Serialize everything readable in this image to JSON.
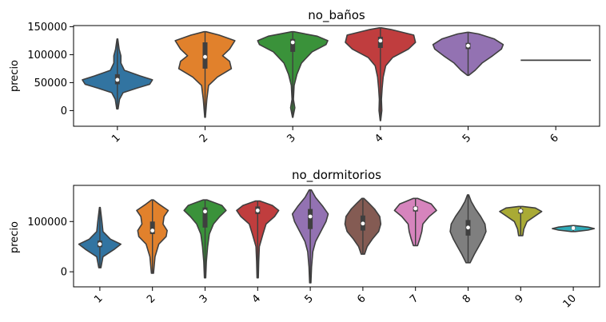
{
  "chart_data": [
    {
      "type": "violin",
      "title": "no_baños",
      "xlabel": "",
      "ylabel": "precio",
      "ylim": [
        -28000,
        152000
      ],
      "yticks": [
        0,
        50000,
        100000,
        150000
      ],
      "categories": [
        "1",
        "2",
        "3",
        "4",
        "5",
        "6"
      ],
      "colors": [
        "#3274a1",
        "#e1812c",
        "#3a923a",
        "#c03d3e",
        "#9372b2",
        "#845b53"
      ],
      "violins": [
        {
          "min": 3000,
          "max": 128000,
          "q1": 47000,
          "median": 55000,
          "q3": 65000,
          "density": [
            [
              3000,
              0.02
            ],
            [
              20000,
              0.06
            ],
            [
              32000,
              0.16
            ],
            [
              40000,
              0.55
            ],
            [
              47000,
              0.92
            ],
            [
              55000,
              1.0
            ],
            [
              62000,
              0.65
            ],
            [
              72000,
              0.2
            ],
            [
              85000,
              0.1
            ],
            [
              98000,
              0.1
            ],
            [
              110000,
              0.05
            ],
            [
              128000,
              0.01
            ]
          ]
        },
        {
          "min": -12000,
          "max": 141000,
          "q1": 75000,
          "median": 96000,
          "q3": 122000,
          "density": [
            [
              -12000,
              0.01
            ],
            [
              20000,
              0.05
            ],
            [
              45000,
              0.1
            ],
            [
              60000,
              0.35
            ],
            [
              75000,
              0.75
            ],
            [
              88000,
              0.7
            ],
            [
              98000,
              0.5
            ],
            [
              110000,
              0.7
            ],
            [
              125000,
              0.85
            ],
            [
              135000,
              0.4
            ],
            [
              141000,
              0.03
            ]
          ]
        },
        {
          "min": -12000,
          "max": 141000,
          "q1": 105000,
          "median": 122000,
          "q3": 128000,
          "density": [
            [
              -12000,
              0.005
            ],
            [
              5000,
              0.06
            ],
            [
              20000,
              0.02
            ],
            [
              45000,
              0.04
            ],
            [
              65000,
              0.12
            ],
            [
              85000,
              0.25
            ],
            [
              105000,
              0.55
            ],
            [
              118000,
              0.95
            ],
            [
              125000,
              1.0
            ],
            [
              133000,
              0.7
            ],
            [
              141000,
              0.03
            ]
          ]
        },
        {
          "min": -18000,
          "max": 148000,
          "q1": 112000,
          "median": 125000,
          "q3": 132000,
          "density": [
            [
              -18000,
              0.005
            ],
            [
              0,
              0.04
            ],
            [
              20000,
              0.03
            ],
            [
              40000,
              0.05
            ],
            [
              60000,
              0.08
            ],
            [
              80000,
              0.15
            ],
            [
              95000,
              0.35
            ],
            [
              110000,
              0.8
            ],
            [
              122000,
              1.0
            ],
            [
              135000,
              0.95
            ],
            [
              145000,
              0.3
            ],
            [
              148000,
              0.03
            ]
          ]
        },
        {
          "min": 63000,
          "max": 140000,
          "q1": 110000,
          "median": 116000,
          "q3": 121000,
          "density": [
            [
              63000,
              0.02
            ],
            [
              72000,
              0.2
            ],
            [
              85000,
              0.4
            ],
            [
              98000,
              0.7
            ],
            [
              110000,
              0.95
            ],
            [
              118000,
              1.0
            ],
            [
              128000,
              0.75
            ],
            [
              137000,
              0.3
            ],
            [
              140000,
              0.02
            ]
          ]
        },
        {
          "min": 90000,
          "max": 90000,
          "median": 90000,
          "flat": true,
          "density": []
        }
      ]
    },
    {
      "type": "violin",
      "title": "no_dormitorios",
      "xlabel": "",
      "ylabel": "precio",
      "ylim": [
        -30000,
        172000
      ],
      "yticks": [
        0,
        100000
      ],
      "categories": [
        "1",
        "2",
        "3",
        "4",
        "5",
        "6",
        "7",
        "8",
        "9",
        "10"
      ],
      "colors": [
        "#3274a1",
        "#e1812c",
        "#3a923a",
        "#c03d3e",
        "#9372b2",
        "#845b53",
        "#d684bd",
        "#7f7f7f",
        "#a9aa35",
        "#2eabb8"
      ],
      "violins": [
        {
          "min": 8000,
          "max": 128000,
          "q1": 49000,
          "median": 55000,
          "q3": 62000,
          "density": [
            [
              8000,
              0.05
            ],
            [
              30000,
              0.15
            ],
            [
              45000,
              0.7
            ],
            [
              55000,
              1.0
            ],
            [
              65000,
              0.5
            ],
            [
              80000,
              0.15
            ],
            [
              100000,
              0.1
            ],
            [
              128000,
              0.02
            ]
          ]
        },
        {
          "min": -3000,
          "max": 143000,
          "q1": 75000,
          "median": 82000,
          "q3": 100000,
          "density": [
            [
              -3000,
              0.05
            ],
            [
              30000,
              0.12
            ],
            [
              55000,
              0.3
            ],
            [
              70000,
              0.65
            ],
            [
              82000,
              0.7
            ],
            [
              95000,
              0.5
            ],
            [
              110000,
              0.55
            ],
            [
              122000,
              0.75
            ],
            [
              135000,
              0.3
            ],
            [
              143000,
              0.05
            ]
          ]
        },
        {
          "min": -12000,
          "max": 143000,
          "q1": 88000,
          "median": 120000,
          "q3": 128000,
          "density": [
            [
              -12000,
              0.03
            ],
            [
              20000,
              0.06
            ],
            [
              50000,
              0.12
            ],
            [
              75000,
              0.2
            ],
            [
              95000,
              0.4
            ],
            [
              110000,
              0.7
            ],
            [
              122000,
              1.0
            ],
            [
              132000,
              0.8
            ],
            [
              143000,
              0.1
            ]
          ]
        },
        {
          "min": -12000,
          "max": 141000,
          "q1": 115000,
          "median": 122000,
          "q3": 130000,
          "density": [
            [
              -12000,
              0.03
            ],
            [
              20000,
              0.05
            ],
            [
              50000,
              0.08
            ],
            [
              75000,
              0.25
            ],
            [
              95000,
              0.4
            ],
            [
              110000,
              0.8
            ],
            [
              122000,
              1.0
            ],
            [
              132000,
              0.7
            ],
            [
              141000,
              0.1
            ]
          ]
        },
        {
          "min": -22000,
          "max": 163000,
          "q1": 85000,
          "median": 110000,
          "q3": 125000,
          "density": [
            [
              -22000,
              0.03
            ],
            [
              10000,
              0.06
            ],
            [
              40000,
              0.12
            ],
            [
              60000,
              0.25
            ],
            [
              80000,
              0.5
            ],
            [
              100000,
              0.75
            ],
            [
              115000,
              0.85
            ],
            [
              130000,
              0.6
            ],
            [
              148000,
              0.25
            ],
            [
              163000,
              0.05
            ]
          ]
        },
        {
          "min": 35000,
          "max": 146000,
          "q1": 82000,
          "median": 96000,
          "q3": 112000,
          "density": [
            [
              35000,
              0.08
            ],
            [
              50000,
              0.2
            ],
            [
              65000,
              0.45
            ],
            [
              80000,
              0.75
            ],
            [
              95000,
              0.85
            ],
            [
              110000,
              0.8
            ],
            [
              125000,
              0.55
            ],
            [
              138000,
              0.25
            ],
            [
              146000,
              0.05
            ]
          ]
        },
        {
          "min": 52000,
          "max": 146000,
          "q1": 120000,
          "median": 126000,
          "q3": 130000,
          "density": [
            [
              52000,
              0.1
            ],
            [
              65000,
              0.2
            ],
            [
              80000,
              0.3
            ],
            [
              95000,
              0.35
            ],
            [
              110000,
              0.65
            ],
            [
              122000,
              1.0
            ],
            [
              135000,
              0.75
            ],
            [
              146000,
              0.1
            ]
          ]
        },
        {
          "min": 18000,
          "max": 153000,
          "q1": 72000,
          "median": 88000,
          "q3": 103000,
          "density": [
            [
              18000,
              0.1
            ],
            [
              35000,
              0.3
            ],
            [
              50000,
              0.5
            ],
            [
              65000,
              0.7
            ],
            [
              80000,
              0.85
            ],
            [
              95000,
              0.8
            ],
            [
              110000,
              0.6
            ],
            [
              125000,
              0.35
            ],
            [
              140000,
              0.15
            ],
            [
              153000,
              0.03
            ]
          ]
        },
        {
          "min": 72000,
          "max": 130000,
          "q1": 116000,
          "median": 121000,
          "q3": 125000,
          "density": [
            [
              72000,
              0.1
            ],
            [
              85000,
              0.15
            ],
            [
              100000,
              0.3
            ],
            [
              110000,
              0.65
            ],
            [
              120000,
              1.0
            ],
            [
              127000,
              0.7
            ],
            [
              130000,
              0.1
            ]
          ]
        },
        {
          "min": 80000,
          "max": 92000,
          "q1": 85000,
          "median": 87000,
          "q3": 89000,
          "density": [
            [
              80000,
              0.1
            ],
            [
              83000,
              0.7
            ],
            [
              86000,
              1.0
            ],
            [
              89000,
              0.7
            ],
            [
              92000,
              0.05
            ]
          ]
        }
      ]
    }
  ]
}
